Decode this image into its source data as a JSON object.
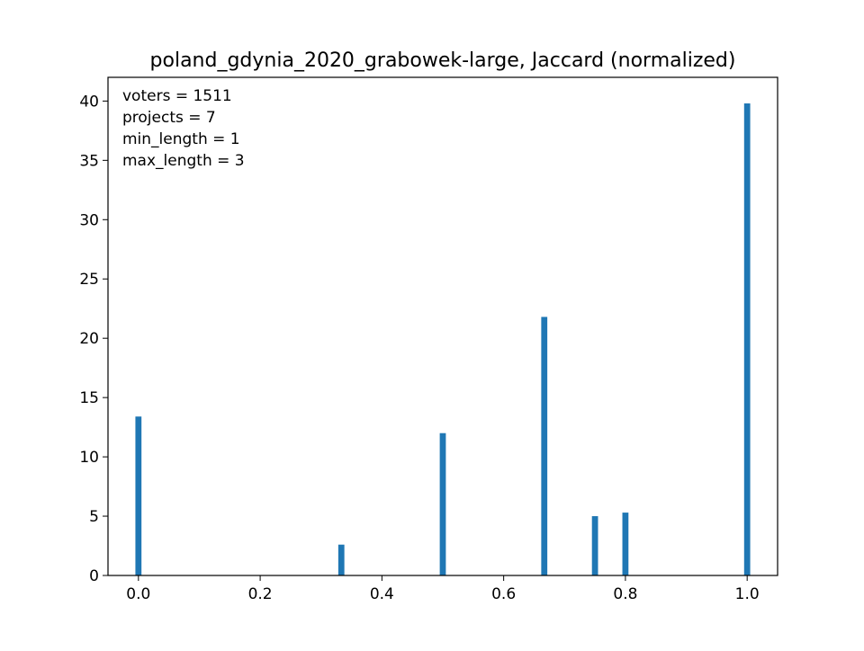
{
  "chart_data": {
    "type": "bar",
    "title": "poland_gdynia_2020_grabowek-large, Jaccard (normalized)",
    "xlabel": "",
    "ylabel": "",
    "xlim": [
      -0.05,
      1.05
    ],
    "ylim": [
      0,
      42
    ],
    "bar_width": 0.01,
    "x": [
      0.0,
      0.3333,
      0.5,
      0.6667,
      0.75,
      0.8,
      1.0
    ],
    "values": [
      13.4,
      2.6,
      12.0,
      21.8,
      5.0,
      5.3,
      39.8
    ],
    "xticks": [
      0.0,
      0.2,
      0.4,
      0.6,
      0.8,
      1.0
    ],
    "xtick_labels": [
      "0.0",
      "0.2",
      "0.4",
      "0.6",
      "0.8",
      "1.0"
    ],
    "yticks": [
      0,
      5,
      10,
      15,
      20,
      25,
      30,
      35,
      40
    ],
    "ytick_labels": [
      "0",
      "5",
      "10",
      "15",
      "20",
      "25",
      "30",
      "35",
      "40"
    ],
    "grid": false,
    "bar_color": "#1f77b4",
    "annotation": [
      "voters = 1511",
      "projects = 7",
      "min_length = 1",
      "max_length = 3"
    ]
  }
}
